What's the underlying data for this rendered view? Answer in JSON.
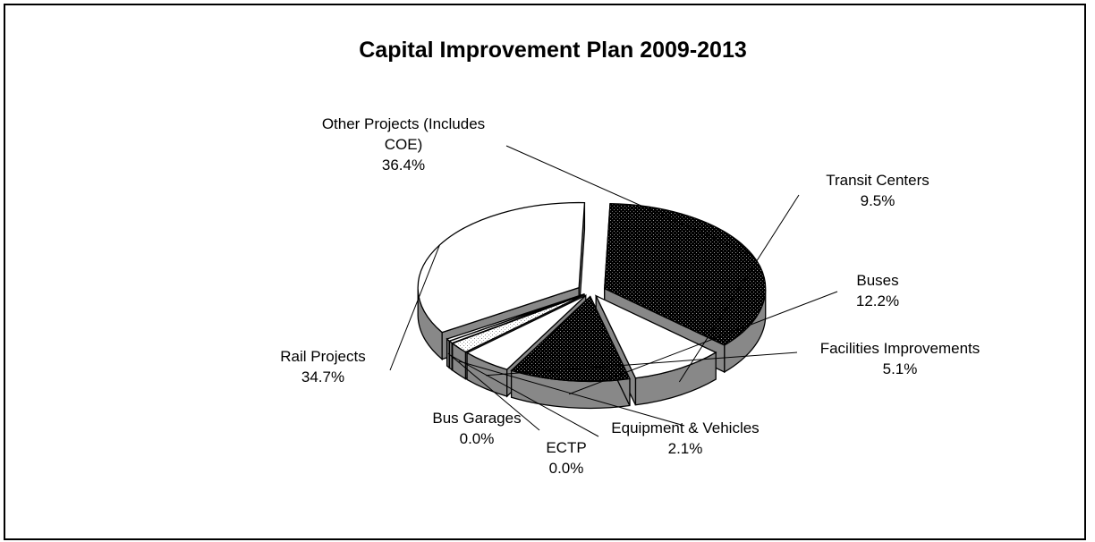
{
  "chart_data": {
    "type": "pie",
    "style": "3d-exploded",
    "title": "Capital Improvement Plan 2009-2013",
    "legend": "none",
    "slices": [
      {
        "name": "Other Projects (Includes COE)",
        "label_lines": [
          "Other Projects (Includes",
          "COE)"
        ],
        "value_label": "36.4%",
        "value": 36.4,
        "fill": "dark-dotted"
      },
      {
        "name": "Transit Centers",
        "label_lines": [
          "Transit Centers"
        ],
        "value_label": "9.5%",
        "value": 9.5,
        "fill": "white"
      },
      {
        "name": "Buses",
        "label_lines": [
          "Buses"
        ],
        "value_label": "12.2%",
        "value": 12.2,
        "fill": "dark-dotted"
      },
      {
        "name": "Facilities Improvements",
        "label_lines": [
          "Facilities Improvements"
        ],
        "value_label": "5.1%",
        "value": 5.1,
        "fill": "white"
      },
      {
        "name": "Equipment & Vehicles",
        "label_lines": [
          "Equipment & Vehicles"
        ],
        "value_label": "2.1%",
        "value": 2.1,
        "fill": "light-dotted"
      },
      {
        "name": "ECTP",
        "label_lines": [
          "ECTP"
        ],
        "value_label": "0.0%",
        "value": 0.0,
        "fill": "white"
      },
      {
        "name": "Bus Garages",
        "label_lines": [
          "Bus Garages"
        ],
        "value_label": "0.0%",
        "value": 0.0,
        "fill": "white"
      },
      {
        "name": "Rail Projects",
        "label_lines": [
          "Rail Projects"
        ],
        "value_label": "34.7%",
        "value": 34.7,
        "fill": "white"
      }
    ],
    "colors": {
      "dark": "#000000",
      "side": "#888888",
      "light": "#ffffff",
      "edge": "#000000"
    }
  }
}
